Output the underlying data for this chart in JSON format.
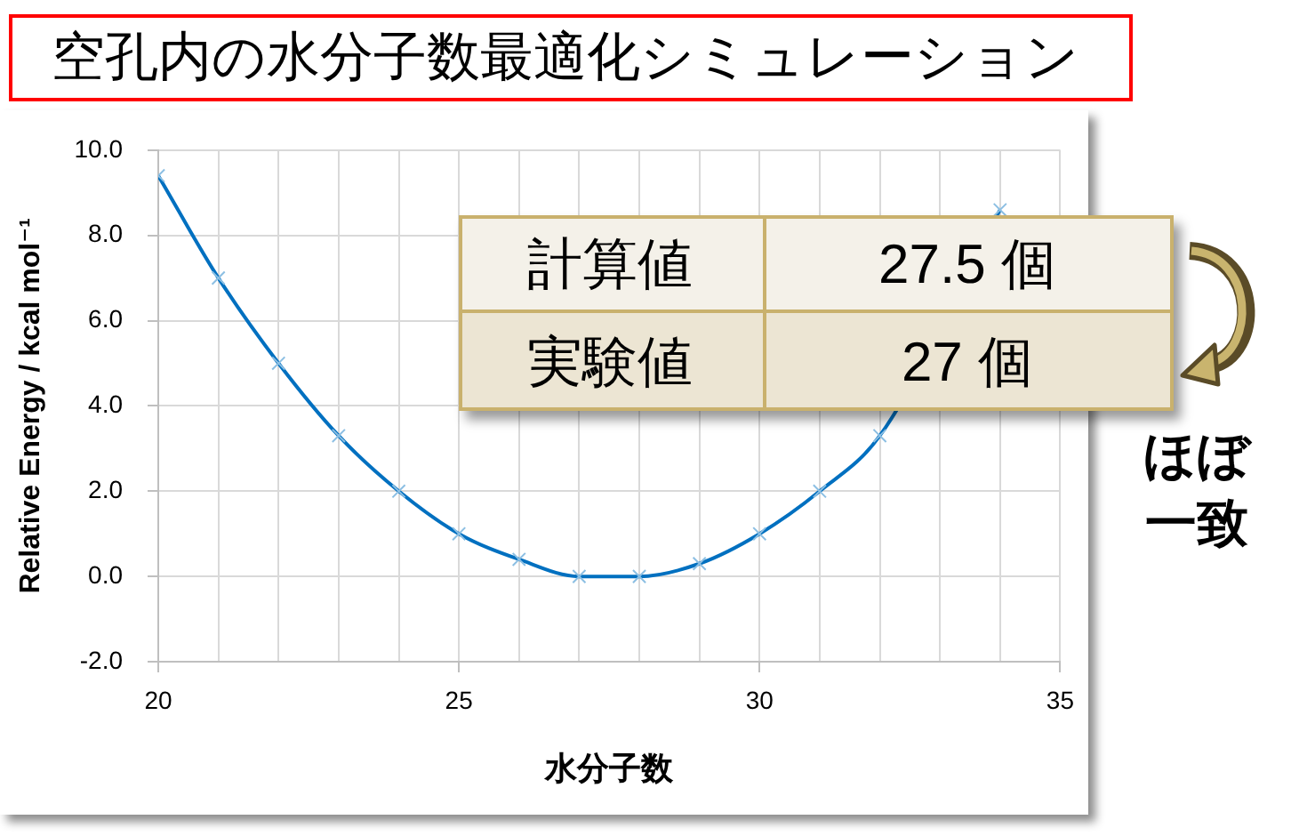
{
  "chart_data": {
    "type": "line",
    "title": "空孔内の水分子数最適化シミュレーション",
    "xlabel": "水分子数",
    "ylabel": "Relative Energy / kcal mol⁻¹",
    "x": [
      20,
      21,
      22,
      23,
      24,
      25,
      26,
      27,
      28,
      29,
      30,
      31,
      32,
      33,
      34
    ],
    "values": [
      9.4,
      7.0,
      5.0,
      3.3,
      2.0,
      1.0,
      0.4,
      0.0,
      0.0,
      0.3,
      1.0,
      2.0,
      3.3,
      null,
      8.6
    ],
    "color": "#0070c0",
    "xlim": [
      20,
      35
    ],
    "xticks": [
      20,
      {
        "value": 21,
        "label": null
      },
      {
        "value": 22,
        "label": null
      },
      {
        "value": 23,
        "label": null
      },
      {
        "value": 24,
        "label": null
      },
      25,
      {
        "value": 26,
        "label": null
      },
      {
        "value": 27,
        "label": null
      },
      {
        "value": 28,
        "label": null
      },
      {
        "value": 29,
        "label": null
      },
      30,
      {
        "value": 31,
        "label": null
      },
      {
        "value": 32,
        "label": null
      },
      {
        "value": 33,
        "label": null
      },
      {
        "value": 34,
        "label": null
      },
      35
    ],
    "ylim": [
      -2,
      10
    ],
    "yticks": [
      {
        "value": -2,
        "label": "-2.0"
      },
      {
        "value": 0,
        "label": "0.0"
      },
      {
        "value": 2,
        "label": "2.0"
      },
      {
        "value": 4,
        "label": "4.0"
      },
      {
        "value": 6,
        "label": "6.0"
      },
      {
        "value": 8,
        "label": "8.0"
      },
      {
        "value": 10,
        "label": "10.0"
      }
    ],
    "grid": true,
    "marker": "cross",
    "line_style": "solid",
    "annotations": [
      "計算値",
      "27.5 個",
      "実験値",
      "27 個",
      "ほぼ一致"
    ]
  }
}
